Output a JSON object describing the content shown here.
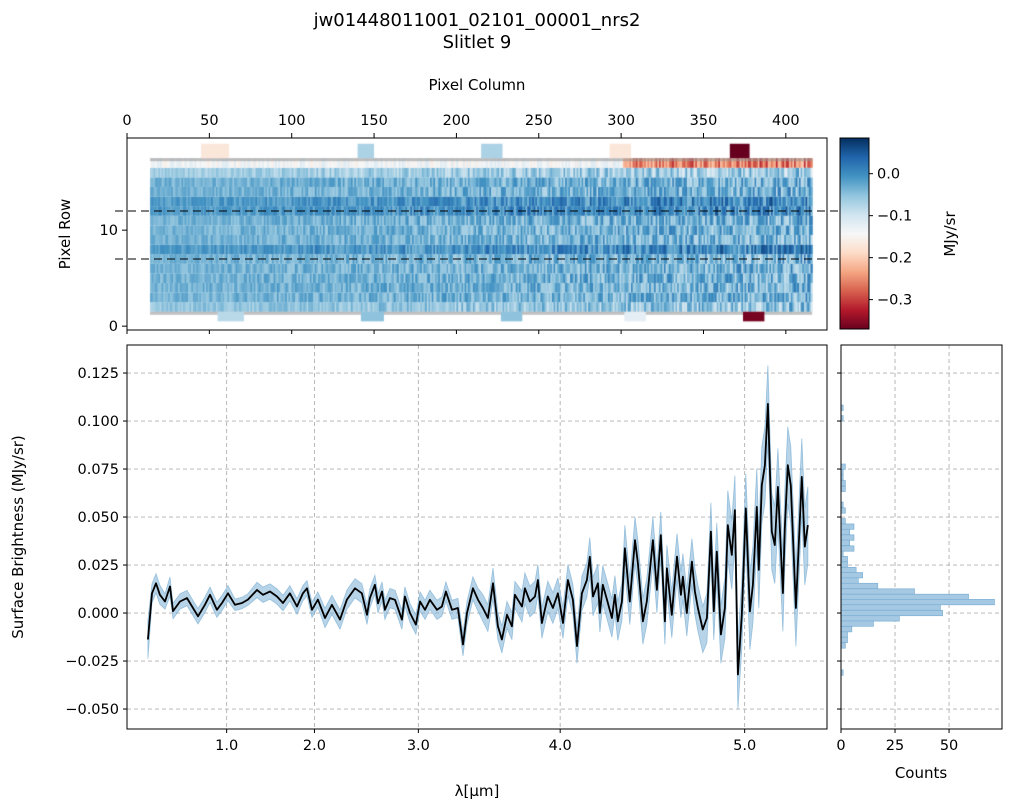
{
  "title": "jw01448011001_02101_00001_nrs2",
  "subtitle": "Slitlet 9",
  "colors": {
    "spectrum_line": "#000000",
    "error_band": "#7bafd4",
    "histogram": "#a6c9e3",
    "grid": "#b0b0b0",
    "extraction_lines": "#000000"
  },
  "chart_data": [
    {
      "type": "heatmap",
      "name": "2d-spectrum",
      "xlabel": "Pixel Column",
      "ylabel": "Pixel Row",
      "xticks": [
        "0",
        "50",
        "100",
        "150",
        "200",
        "250",
        "300",
        "350",
        "400"
      ],
      "yticks": [
        "0",
        "10"
      ],
      "xlim": [
        0,
        425
      ],
      "ylim": [
        -0.4,
        19.6
      ],
      "colormap": "RdBu",
      "colorbar_label": "MJy/sr",
      "colorbar_ticks": [
        "0.0",
        "−0.1",
        "−0.2",
        "−0.3"
      ],
      "colorbar_range": [
        -0.37,
        0.085
      ],
      "extraction_rows": [
        7,
        12
      ]
    },
    {
      "type": "line",
      "name": "1d-spectrum",
      "xlabel": "λ[μm]",
      "ylabel": "Surface Brightness (MJy/sr)",
      "x_axis_note": "points indexed by pixel column; wavelength ticks at pixel columns",
      "xticks": [
        {
          "label": "1.0",
          "column": 60.5
        },
        {
          "label": "2.0",
          "column": 113.8
        },
        {
          "label": "3.0",
          "column": 176.9
        },
        {
          "label": "4.0",
          "column": 263.0
        },
        {
          "label": "5.0",
          "column": 375.0
        }
      ],
      "yticks": [
        "0.125",
        "0.100",
        "0.075",
        "0.050",
        "0.025",
        "0.000",
        "−0.025",
        "−0.050"
      ],
      "ytick_values": [
        0.125,
        0.1,
        0.075,
        0.05,
        0.025,
        0,
        -0.025,
        -0.05
      ],
      "xlim": [
        0,
        425
      ],
      "ylim": [
        -0.0604,
        0.1396
      ],
      "grid": true,
      "points_column_flux_err": [
        [
          12.7,
          -0.0138,
          0.01
        ],
        [
          15.2,
          0.0103,
          0.005
        ],
        [
          17.6,
          0.0155,
          0.005
        ],
        [
          20.0,
          0.0095,
          0.005
        ],
        [
          23.1,
          0.006,
          0.004
        ],
        [
          26.1,
          0.0138,
          0.005
        ],
        [
          27.9,
          0.001,
          0.004
        ],
        [
          32.2,
          0.006,
          0.004
        ],
        [
          36.4,
          0.0078,
          0.004
        ],
        [
          40.1,
          0.0026,
          0.004
        ],
        [
          43.1,
          -0.0017,
          0.004
        ],
        [
          47.3,
          0.0043,
          0.004
        ],
        [
          50.4,
          0.0095,
          0.004
        ],
        [
          54.6,
          0.0017,
          0.004
        ],
        [
          57.7,
          0.0052,
          0.004
        ],
        [
          61.3,
          0.0103,
          0.004
        ],
        [
          65.6,
          0.0043,
          0.003
        ],
        [
          69.8,
          0.0052,
          0.003
        ],
        [
          73.4,
          0.007,
          0.003
        ],
        [
          78.9,
          0.012,
          0.004
        ],
        [
          82.6,
          0.0095,
          0.004
        ],
        [
          86.8,
          0.0112,
          0.004
        ],
        [
          91.1,
          0.0086,
          0.004
        ],
        [
          94.7,
          0.0052,
          0.004
        ],
        [
          98.9,
          0.0103,
          0.004
        ],
        [
          103.2,
          0.0034,
          0.004
        ],
        [
          106.8,
          0.0103,
          0.004
        ],
        [
          109.3,
          0.0129,
          0.004
        ],
        [
          112.3,
          0.0017,
          0.004
        ],
        [
          115.9,
          0.007,
          0.004
        ],
        [
          120.2,
          -0.0026,
          0.005
        ],
        [
          124.4,
          0.0043,
          0.005
        ],
        [
          129.3,
          -0.0034,
          0.005
        ],
        [
          133.5,
          0.007,
          0.005
        ],
        [
          138.4,
          0.0129,
          0.005
        ],
        [
          142.6,
          0.0103,
          0.005
        ],
        [
          145.7,
          -0.0009,
          0.005
        ],
        [
          147.5,
          0.0078,
          0.005
        ],
        [
          150.5,
          0.0147,
          0.005
        ],
        [
          152.4,
          0.005,
          0.005
        ],
        [
          154.8,
          0.0112,
          0.005
        ],
        [
          156.6,
          0.0017,
          0.005
        ],
        [
          159.6,
          0.0078,
          0.005
        ],
        [
          162.7,
          0.0069,
          0.005
        ],
        [
          166.9,
          -0.0034,
          0.005
        ],
        [
          168.7,
          0.0086,
          0.005
        ],
        [
          171.8,
          0.0,
          0.005
        ],
        [
          175.4,
          -0.006,
          0.005
        ],
        [
          177.9,
          0.006,
          0.005
        ],
        [
          180.9,
          0.0017,
          0.005
        ],
        [
          183.9,
          0.0069,
          0.005
        ],
        [
          188.2,
          0.0017,
          0.005
        ],
        [
          191.2,
          0.0034,
          0.005
        ],
        [
          193.6,
          0.0112,
          0.005
        ],
        [
          197.3,
          0.0017,
          0.005
        ],
        [
          200.9,
          0.0026,
          0.005
        ],
        [
          204.0,
          -0.0164,
          0.006
        ],
        [
          206.4,
          0.0,
          0.006
        ],
        [
          210.0,
          0.0129,
          0.006
        ],
        [
          213.1,
          0.0069,
          0.006
        ],
        [
          216.1,
          0.0026,
          0.007
        ],
        [
          219.1,
          -0.0026,
          0.007
        ],
        [
          222.2,
          0.0155,
          0.008
        ],
        [
          225.2,
          -0.0069,
          0.007
        ],
        [
          227.6,
          -0.0138,
          0.007
        ],
        [
          230.7,
          -0.0009,
          0.007
        ],
        [
          233.7,
          -0.0069,
          0.007
        ],
        [
          235.5,
          0.0095,
          0.007
        ],
        [
          239.8,
          0.0034,
          0.008
        ],
        [
          241.6,
          0.0129,
          0.008
        ],
        [
          244.6,
          0.006,
          0.008
        ],
        [
          247.7,
          0.0086,
          0.008
        ],
        [
          249.5,
          0.0172,
          0.008
        ],
        [
          251.9,
          -0.0052,
          0.008
        ],
        [
          255.5,
          0.0086,
          0.008
        ],
        [
          258.6,
          0.0026,
          0.008
        ],
        [
          261.6,
          0.0103,
          0.008
        ],
        [
          264.7,
          -0.0052,
          0.008
        ],
        [
          267.7,
          0.0172,
          0.008
        ],
        [
          270.7,
          0.0069,
          0.008
        ],
        [
          273.2,
          -0.0172,
          0.009
        ],
        [
          276.2,
          0.0103,
          0.009
        ],
        [
          279.2,
          0.0172,
          0.009
        ],
        [
          281.0,
          0.0293,
          0.01
        ],
        [
          282.9,
          0.0086,
          0.01
        ],
        [
          285.9,
          0.0155,
          0.01
        ],
        [
          287.1,
          0.0,
          0.01
        ],
        [
          288.9,
          0.0147,
          0.01
        ],
        [
          291.4,
          0.0069,
          0.01
        ],
        [
          294.4,
          -0.0026,
          0.01
        ],
        [
          296.2,
          0.0095,
          0.01
        ],
        [
          298.0,
          -0.0043,
          0.01
        ],
        [
          300.5,
          0.006,
          0.01
        ],
        [
          302.3,
          0.0337,
          0.012
        ],
        [
          305.3,
          0.006,
          0.012
        ],
        [
          308.4,
          0.038,
          0.012
        ],
        [
          310.2,
          0.0259,
          0.012
        ],
        [
          313.2,
          -0.0043,
          0.012
        ],
        [
          315.6,
          0.006,
          0.012
        ],
        [
          319.3,
          0.038,
          0.012
        ],
        [
          321.7,
          0.0121,
          0.012
        ],
        [
          324.1,
          0.0406,
          0.012
        ],
        [
          326.6,
          -0.0043,
          0.012
        ],
        [
          327.8,
          0.0233,
          0.012
        ],
        [
          330.8,
          -0.0009,
          0.012
        ],
        [
          332.0,
          0.0112,
          0.012
        ],
        [
          333.9,
          0.0294,
          0.012
        ],
        [
          336.3,
          0.0095,
          0.012
        ],
        [
          337.5,
          0.019,
          0.012
        ],
        [
          339.9,
          0.0,
          0.012
        ],
        [
          343.0,
          0.0268,
          0.012
        ],
        [
          344.8,
          0.0112,
          0.012
        ],
        [
          346.6,
          0.0026,
          0.012
        ],
        [
          349.6,
          -0.0086,
          0.012
        ],
        [
          352.1,
          -0.0026,
          0.013
        ],
        [
          354.5,
          0.0424,
          0.015
        ],
        [
          356.3,
          0.0009,
          0.015
        ],
        [
          358.1,
          0.032,
          0.015
        ],
        [
          360.6,
          -0.0112,
          0.015
        ],
        [
          363.0,
          0.0026,
          0.016
        ],
        [
          364.8,
          0.0458,
          0.018
        ],
        [
          367.2,
          0.0303,
          0.018
        ],
        [
          369.1,
          0.0536,
          0.018
        ],
        [
          370.9,
          -0.032,
          0.018
        ],
        [
          373.3,
          -0.0009,
          0.018
        ],
        [
          375.7,
          0.0545,
          0.018
        ],
        [
          378.2,
          0.0009,
          0.02
        ],
        [
          380.0,
          0.0147,
          0.02
        ],
        [
          382.4,
          0.0553,
          0.02
        ],
        [
          383.6,
          0.0225,
          0.02
        ],
        [
          385.4,
          0.0666,
          0.02
        ],
        [
          387.3,
          0.077,
          0.02
        ],
        [
          389.1,
          0.1089,
          0.02
        ],
        [
          391.5,
          0.0424,
          0.02
        ],
        [
          393.3,
          0.0354,
          0.02
        ],
        [
          395.2,
          0.0657,
          0.02
        ],
        [
          398.2,
          0.0104,
          0.02
        ],
        [
          399.4,
          0.0441,
          0.02
        ],
        [
          401.2,
          0.077,
          0.02
        ],
        [
          403.0,
          0.0666,
          0.02
        ],
        [
          406.1,
          0.0026,
          0.02
        ],
        [
          409.7,
          0.0709,
          0.02
        ],
        [
          411.5,
          0.0346,
          0.02
        ],
        [
          413.4,
          0.0458,
          0.02
        ]
      ]
    },
    {
      "type": "bar",
      "orientation": "horizontal",
      "name": "flux-histogram",
      "xlabel": "Counts",
      "xticks": [
        "0",
        "25",
        "50"
      ],
      "xtick_values": [
        0,
        25,
        50
      ],
      "xlim": [
        0,
        74.5
      ],
      "bin_width": 0.0028,
      "bins_center_count": [
        [
          0.1069,
          1
        ],
        [
          0.1014,
          1
        ],
        [
          0.0762,
          2
        ],
        [
          0.0733,
          1
        ],
        [
          0.0707,
          1
        ],
        [
          0.0676,
          2
        ],
        [
          0.0647,
          2
        ],
        [
          0.0564,
          1
        ],
        [
          0.0534,
          2
        ],
        [
          0.0478,
          2
        ],
        [
          0.045,
          6
        ],
        [
          0.0422,
          4
        ],
        [
          0.0393,
          6
        ],
        [
          0.0366,
          4
        ],
        [
          0.0336,
          6
        ],
        [
          0.0309,
          1
        ],
        [
          0.0281,
          3
        ],
        [
          0.0253,
          3
        ],
        [
          0.0224,
          7
        ],
        [
          0.0197,
          10
        ],
        [
          0.0169,
          8
        ],
        [
          0.0141,
          17
        ],
        [
          0.0112,
          34
        ],
        [
          0.0084,
          59
        ],
        [
          0.0057,
          71
        ],
        [
          0.0029,
          46
        ],
        [
          0.0,
          47
        ],
        [
          -0.0028,
          27
        ],
        [
          -0.0055,
          15
        ],
        [
          -0.0084,
          5
        ],
        [
          -0.0112,
          3
        ],
        [
          -0.014,
          3
        ],
        [
          -0.0169,
          2
        ],
        [
          -0.031,
          1
        ]
      ]
    }
  ]
}
